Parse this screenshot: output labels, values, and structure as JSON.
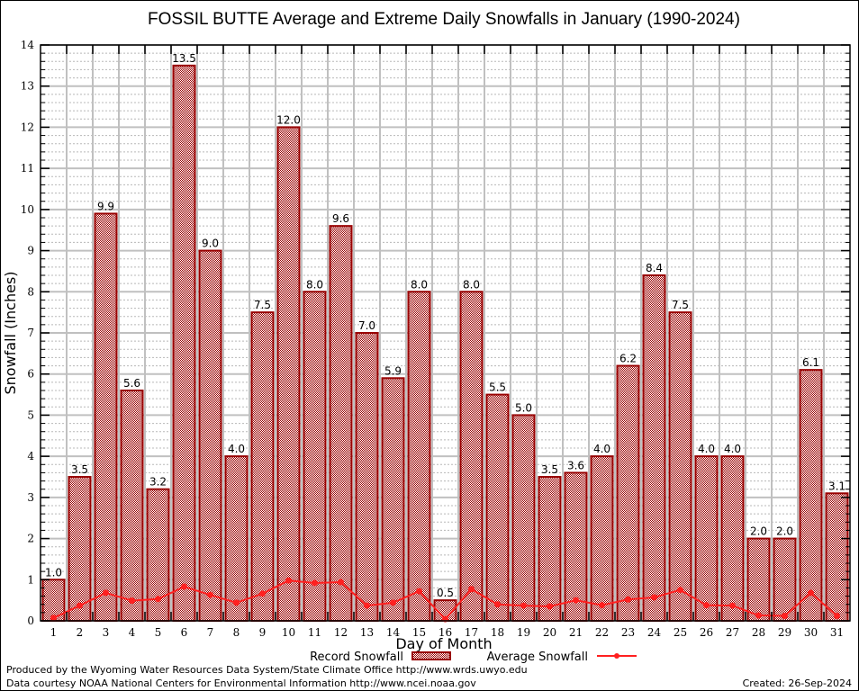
{
  "chart_data": {
    "type": "bar",
    "title": "FOSSIL BUTTE Average and Extreme Daily Snowfalls in January (1990-2024)",
    "xlabel": "Day of Month",
    "ylabel": "Snowfall (Inches)",
    "ylim": [
      0,
      14
    ],
    "yticks": [
      0,
      1,
      2,
      3,
      4,
      5,
      6,
      7,
      8,
      9,
      10,
      11,
      12,
      13,
      14
    ],
    "grid": true,
    "categories": [
      "1",
      "2",
      "3",
      "4",
      "5",
      "6",
      "7",
      "8",
      "9",
      "10",
      "11",
      "12",
      "13",
      "14",
      "15",
      "16",
      "17",
      "18",
      "19",
      "20",
      "21",
      "22",
      "23",
      "24",
      "25",
      "26",
      "27",
      "28",
      "29",
      "30",
      "31"
    ],
    "series": [
      {
        "name": "Record Snowfall",
        "type": "bar",
        "color": "#990000",
        "values": [
          1.0,
          3.5,
          9.9,
          5.6,
          3.2,
          13.5,
          9.0,
          4.0,
          7.5,
          12.0,
          8.0,
          9.6,
          7.0,
          5.9,
          8.0,
          0.5,
          8.0,
          5.5,
          5.0,
          3.5,
          3.6,
          4.0,
          6.2,
          8.4,
          7.5,
          4.0,
          4.0,
          2.0,
          2.0,
          6.1,
          3.1
        ],
        "labels": [
          "1.0",
          "3.5",
          "9.9",
          "5.6",
          "3.2",
          "13.5",
          "9.0",
          "4.0",
          "7.5",
          "12.0",
          "8.0",
          "9.6",
          "7.0",
          "5.9",
          "8.0",
          "0.5",
          "8.0",
          "5.5",
          "5.0",
          "3.5",
          "3.6",
          "4.0",
          "6.2",
          "8.4",
          "7.5",
          "4.0",
          "4.0",
          "2.0",
          "2.0",
          "6.1",
          "3.1"
        ]
      },
      {
        "name": "Average Snowfall",
        "type": "line",
        "color": "#ff2020",
        "values": [
          0.07,
          0.37,
          0.68,
          0.49,
          0.53,
          0.83,
          0.63,
          0.44,
          0.66,
          0.98,
          0.92,
          0.94,
          0.37,
          0.44,
          0.72,
          0.04,
          0.77,
          0.4,
          0.37,
          0.35,
          0.5,
          0.38,
          0.52,
          0.57,
          0.75,
          0.38,
          0.37,
          0.13,
          0.12,
          0.68,
          0.12
        ]
      }
    ],
    "legend": {
      "placement": "bottom-center",
      "entries": [
        "Record Snowfall",
        "Average Snowfall"
      ]
    }
  },
  "footer": {
    "line1": "Produced by the Wyoming Water Resources Data System/State Climate Office http://www.wrds.uwyo.edu",
    "line2": "Data courtesy NOAA National Centers for Environmental Information http://www.ncei.noaa.gov",
    "created": "Created: 26-Sep-2024"
  }
}
